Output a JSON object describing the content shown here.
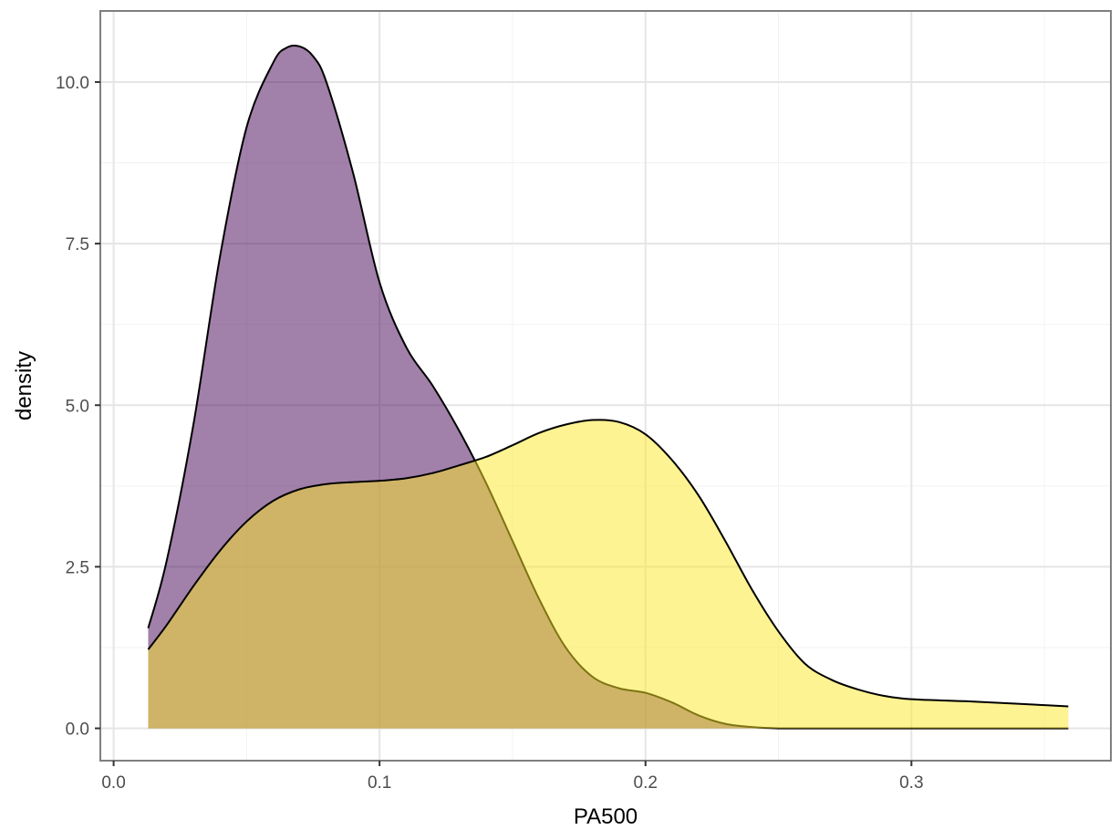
{
  "chart_data": {
    "type": "area",
    "xlabel": "PA500",
    "ylabel": "density",
    "xlim": [
      -0.005,
      0.375
    ],
    "ylim": [
      -0.5,
      11.1
    ],
    "x_ticks": [
      {
        "value": 0.0,
        "label": "0.0"
      },
      {
        "value": 0.1,
        "label": "0.1"
      },
      {
        "value": 0.2,
        "label": "0.2"
      },
      {
        "value": 0.3,
        "label": "0.3"
      }
    ],
    "y_ticks": [
      {
        "value": 0.0,
        "label": "0.0"
      },
      {
        "value": 2.5,
        "label": "2.5"
      },
      {
        "value": 5.0,
        "label": "5.0"
      },
      {
        "value": 7.5,
        "label": "7.5"
      },
      {
        "value": 10.0,
        "label": "10.0"
      }
    ],
    "grid": true,
    "legend": "none",
    "series": [
      {
        "fill": "#440154",
        "opacity": 0.5,
        "x": [
          0.013,
          0.02,
          0.03,
          0.04,
          0.05,
          0.06,
          0.065,
          0.07,
          0.075,
          0.08,
          0.09,
          0.1,
          0.11,
          0.12,
          0.13,
          0.14,
          0.15,
          0.16,
          0.17,
          0.18,
          0.19,
          0.2,
          0.21,
          0.22,
          0.23,
          0.24,
          0.25,
          0.26,
          0.28,
          0.3,
          0.33,
          0.359
        ],
        "y": [
          1.55,
          2.6,
          4.7,
          7.3,
          9.3,
          10.3,
          10.53,
          10.55,
          10.4,
          10.0,
          8.6,
          6.9,
          5.9,
          5.3,
          4.6,
          3.8,
          2.9,
          2.0,
          1.25,
          0.8,
          0.62,
          0.55,
          0.4,
          0.2,
          0.07,
          0.02,
          0.0,
          0.0,
          0.0,
          0.0,
          0.0,
          0.0
        ]
      },
      {
        "fill": "#fde725",
        "opacity": 0.5,
        "x": [
          0.013,
          0.02,
          0.03,
          0.04,
          0.05,
          0.06,
          0.07,
          0.08,
          0.09,
          0.1,
          0.11,
          0.12,
          0.13,
          0.14,
          0.15,
          0.16,
          0.17,
          0.18,
          0.19,
          0.2,
          0.21,
          0.22,
          0.23,
          0.24,
          0.25,
          0.26,
          0.27,
          0.28,
          0.29,
          0.3,
          0.32,
          0.34,
          0.359
        ],
        "y": [
          1.22,
          1.6,
          2.2,
          2.75,
          3.2,
          3.52,
          3.7,
          3.78,
          3.81,
          3.83,
          3.87,
          3.95,
          4.07,
          4.2,
          4.38,
          4.57,
          4.7,
          4.77,
          4.74,
          4.55,
          4.15,
          3.6,
          2.9,
          2.15,
          1.5,
          1.0,
          0.75,
          0.6,
          0.5,
          0.45,
          0.42,
          0.38,
          0.34
        ]
      }
    ]
  }
}
